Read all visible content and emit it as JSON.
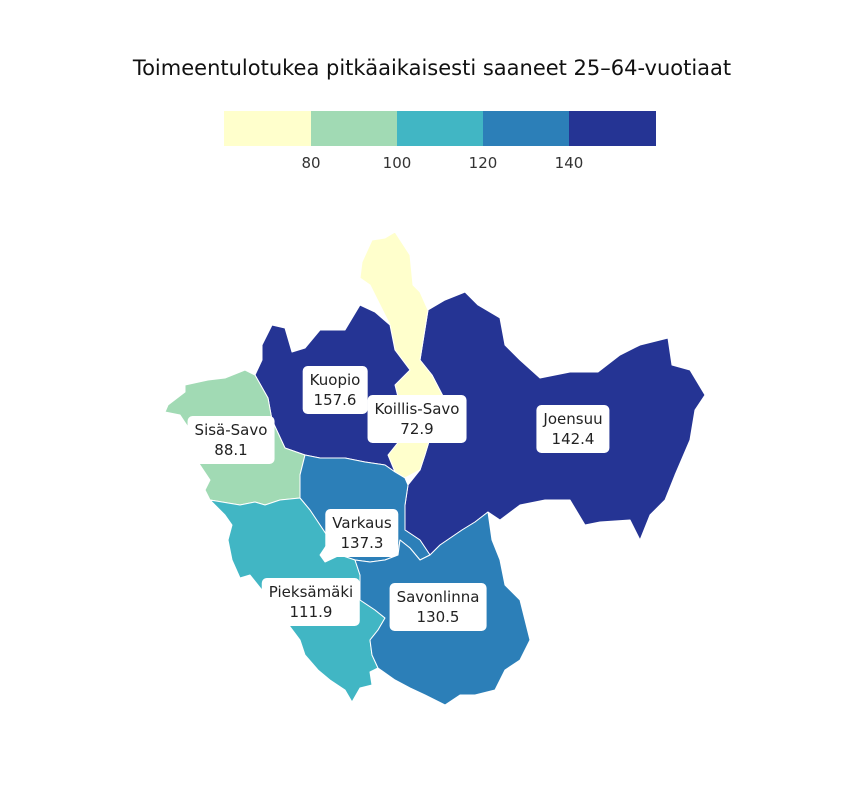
{
  "title": "Toimeentulotukea pitkäaikaisesti saaneet 25–64-vuotiaat",
  "legend": {
    "colors": [
      "#ffffcc",
      "#a1dab4",
      "#41b6c4",
      "#2c7fb8",
      "#253494"
    ],
    "ticks": [
      "80",
      "100",
      "120",
      "140"
    ]
  },
  "regions": [
    {
      "id": "kuopio",
      "name": "Kuopio",
      "value": "157.6",
      "color": "#253494"
    },
    {
      "id": "koillis-savo",
      "name": "Koillis-Savo",
      "value": "72.9",
      "color": "#ffffcc"
    },
    {
      "id": "joensuu",
      "name": "Joensuu",
      "value": "142.4",
      "color": "#253494"
    },
    {
      "id": "sisa-savo",
      "name": "Sisä-Savo",
      "value": "88.1",
      "color": "#a1dab4"
    },
    {
      "id": "varkaus",
      "name": "Varkaus",
      "value": "137.3",
      "color": "#2c7fb8"
    },
    {
      "id": "pieksamaki",
      "name": "Pieksämäki",
      "value": "111.9",
      "color": "#41b6c4"
    },
    {
      "id": "savonlinna",
      "name": "Savonlinna",
      "value": "130.5",
      "color": "#2c7fb8"
    }
  ]
}
